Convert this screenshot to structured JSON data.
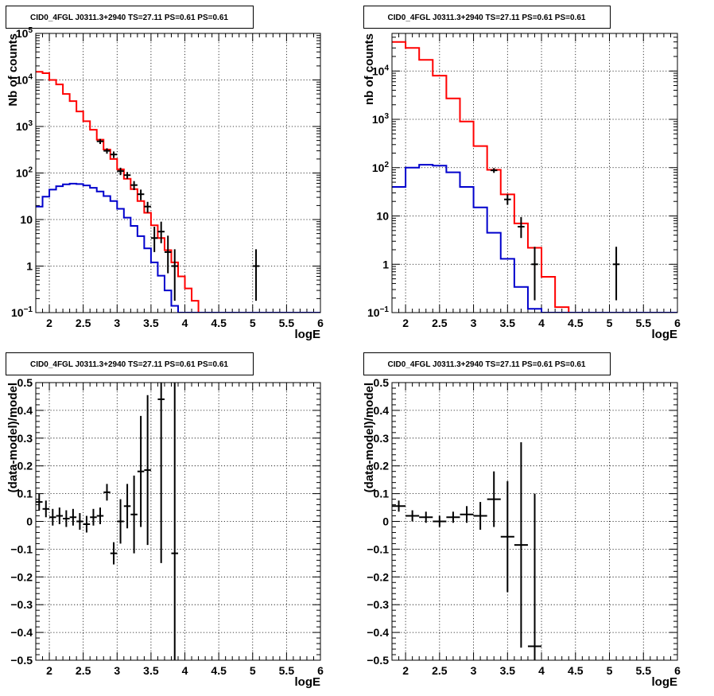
{
  "chart_data": [
    {
      "type": "line",
      "title": "CID0_4FGL J0311.3+2940 TS=27.11 PS=0.61 PS=0.61",
      "xlabel": "logE",
      "ylabel": "Nb of counts",
      "xlim": [
        1.8,
        6
      ],
      "ylim": [
        0.1,
        100000
      ],
      "yscale": "log",
      "grid": true,
      "x_ticks": [
        "2",
        "2.5",
        "3",
        "3.5",
        "4",
        "4.5",
        "5",
        "5.5",
        "6"
      ],
      "y_ticks": [
        "10⁻¹",
        "1",
        "10",
        "10²",
        "10³",
        "10⁴",
        "10⁵"
      ],
      "series": [
        {
          "color": "#ff0000",
          "style": "step",
          "bin_width": 0.1,
          "x": [
            1.8,
            1.9,
            2.0,
            2.1,
            2.2,
            2.3,
            2.4,
            2.5,
            2.6,
            2.7,
            2.8,
            2.9,
            3.0,
            3.1,
            3.2,
            3.3,
            3.4,
            3.5,
            3.6,
            3.7,
            3.8,
            3.9,
            4.0,
            4.1,
            4.2,
            4.3,
            4.4,
            4.5,
            4.6,
            4.7,
            4.8,
            4.9,
            5.0,
            5.1,
            5.2,
            5.3,
            5.4,
            5.5,
            5.6,
            5.7,
            5.8,
            5.9
          ],
          "values": [
            15000,
            14000,
            10000,
            8000,
            5000,
            3500,
            2100,
            1300,
            850,
            520,
            320,
            200,
            120,
            75,
            45,
            25,
            14,
            7.5,
            4,
            2.2,
            1.2,
            0.6,
            0.33,
            0.18,
            0.1,
            0.05,
            0.03,
            0.02,
            0.01,
            0.01,
            0.01,
            0.01,
            0.01,
            0.01,
            0.01,
            0.01,
            0.01,
            0.01,
            0.01,
            0.01,
            0.01,
            0.01
          ]
        },
        {
          "color": "#0000cc",
          "style": "step",
          "bin_width": 0.1,
          "x": [
            1.8,
            1.9,
            2.0,
            2.1,
            2.2,
            2.3,
            2.4,
            2.5,
            2.6,
            2.7,
            2.8,
            2.9,
            3.0,
            3.1,
            3.2,
            3.3,
            3.4,
            3.5,
            3.6,
            3.7,
            3.8,
            3.9,
            4.0,
            4.1,
            4.2,
            4.3,
            4.4,
            4.5,
            4.6,
            4.7,
            4.8,
            4.9,
            5.0,
            5.1,
            5.2,
            5.3,
            5.4,
            5.5,
            5.6,
            5.7,
            5.8,
            5.9
          ],
          "values": [
            19,
            31,
            44,
            52,
            57,
            59,
            58,
            54,
            48,
            40,
            32,
            25,
            17,
            11,
            7.3,
            4.4,
            2.4,
            1.2,
            0.62,
            0.3,
            0.14,
            0.1,
            0.1,
            0.1,
            0.1,
            0.1,
            0.1,
            0.1,
            0.1,
            0.1,
            0.1,
            0.1,
            0.1,
            0.1,
            0.1,
            0.1,
            0.1,
            0.1,
            0.1,
            0.1,
            0.1,
            0.1
          ]
        },
        {
          "color": "#000000",
          "style": "errorbars",
          "x": [
            2.75,
            2.85,
            2.95,
            3.05,
            3.15,
            3.25,
            3.35,
            3.45,
            3.55,
            3.65,
            3.75,
            3.85,
            5.05
          ],
          "values": [
            480,
            300,
            250,
            110,
            90,
            55,
            35,
            19,
            4,
            5.5,
            2,
            1,
            1
          ],
          "err_low": [
            60,
            40,
            40,
            20,
            15,
            12,
            9,
            5,
            2,
            2.4,
            1.3,
            0.82,
            0.82
          ],
          "err_high": [
            60,
            40,
            40,
            20,
            15,
            12,
            9,
            5,
            3,
            3.5,
            2.5,
            1.3,
            1.3
          ]
        }
      ]
    },
    {
      "type": "line",
      "title": "CID0_4FGL J0311.3+2940 TS=27.11 PS=0.61 PS=0.61",
      "xlabel": "logE",
      "ylabel": "nb of counts",
      "xlim": [
        1.8,
        6
      ],
      "ylim": [
        0.1,
        60000
      ],
      "yscale": "log",
      "grid": true,
      "x_ticks": [
        "2",
        "2.5",
        "3",
        "3.5",
        "4",
        "4.5",
        "5",
        "5.5",
        "6"
      ],
      "y_ticks": [
        "10⁻¹",
        "1",
        "10",
        "10²",
        "10³",
        "10⁴"
      ],
      "series": [
        {
          "color": "#ff0000",
          "style": "step",
          "bin_width": 0.2,
          "x": [
            1.8,
            2.0,
            2.2,
            2.4,
            2.6,
            2.8,
            3.0,
            3.2,
            3.4,
            3.6,
            3.8,
            4.0,
            4.2,
            4.4,
            4.6,
            4.8,
            5.0,
            5.2,
            5.4,
            5.6,
            5.8
          ],
          "values": [
            40000,
            30000,
            17000,
            8000,
            2700,
            900,
            280,
            90,
            28,
            7,
            2.2,
            0.55,
            0.13,
            0.05,
            0.05,
            0.05,
            0.05,
            0.05,
            0.05,
            0.05,
            0.05
          ]
        },
        {
          "color": "#0000cc",
          "style": "step",
          "bin_width": 0.2,
          "x": [
            1.8,
            2.0,
            2.2,
            2.4,
            2.6,
            2.8,
            3.0,
            3.2,
            3.4,
            3.6,
            3.8,
            4.0,
            4.2,
            4.4,
            4.6,
            4.8,
            5.0,
            5.2,
            5.4,
            5.6,
            5.8
          ],
          "values": [
            40,
            100,
            115,
            110,
            80,
            40,
            15,
            4.5,
            1.3,
            0.34,
            0.12,
            0.1,
            0.1,
            0.1,
            0.1,
            0.1,
            0.1,
            0.1,
            0.1,
            0.1,
            0.1
          ]
        },
        {
          "color": "#000000",
          "style": "errorbars",
          "x": [
            3.3,
            3.5,
            3.7,
            3.9,
            5.1
          ],
          "values": [
            88,
            22,
            6,
            1,
            1
          ],
          "err_low": [
            10,
            5,
            2.5,
            0.82,
            0.82
          ],
          "err_high": [
            10,
            6,
            3.5,
            1.3,
            1.3
          ]
        }
      ]
    },
    {
      "type": "scatter",
      "title": "CID0_4FGL J0311.3+2940 TS=27.11 PS=0.61 PS=0.61",
      "xlabel": "logE",
      "ylabel": "(data-model)/model",
      "xlim": [
        1.8,
        6
      ],
      "ylim": [
        -0.5,
        0.5
      ],
      "grid": true,
      "x_ticks": [
        "2",
        "2.5",
        "3",
        "3.5",
        "4",
        "4.5",
        "5",
        "5.5",
        "6"
      ],
      "y_ticks": [
        "−0.5",
        "−0.4",
        "−0.3",
        "−0.2",
        "−0.1",
        "0",
        "0.1",
        "0.2",
        "0.3",
        "0.4",
        "0.5"
      ],
      "series": [
        {
          "color": "#000000",
          "style": "errorbars",
          "x_half_width": 0.05,
          "x": [
            1.85,
            1.95,
            2.05,
            2.15,
            2.25,
            2.35,
            2.45,
            2.55,
            2.65,
            2.75,
            2.85,
            2.95,
            3.05,
            3.15,
            3.25,
            3.35,
            3.45,
            3.65,
            3.85
          ],
          "values": [
            0.07,
            0.045,
            0.015,
            0.02,
            0.01,
            0.015,
            0.0,
            -0.01,
            0.015,
            0.02,
            0.105,
            -0.115,
            0.0,
            0.055,
            0.025,
            0.18,
            0.185,
            0.44,
            -0.115
          ],
          "err": [
            0.03,
            0.03,
            0.03,
            0.03,
            0.03,
            0.03,
            0.03,
            0.03,
            0.03,
            0.03,
            0.03,
            0.04,
            0.08,
            0.08,
            0.14,
            0.2,
            0.27,
            0.59,
            0.62
          ]
        }
      ]
    },
    {
      "type": "scatter",
      "title": "CID0_4FGL J0311.3+2940 TS=27.11 PS=0.61 PS=0.61",
      "xlabel": "logE",
      "ylabel": "(data-model)/model",
      "xlim": [
        1.8,
        6
      ],
      "ylim": [
        -0.5,
        0.5
      ],
      "grid": true,
      "x_ticks": [
        "2",
        "2.5",
        "3",
        "3.5",
        "4",
        "4.5",
        "5",
        "5.5",
        "6"
      ],
      "y_ticks": [
        "−0.5",
        "−0.4",
        "−0.3",
        "−0.2",
        "−0.1",
        "0",
        "0.1",
        "0.2",
        "0.3",
        "0.4",
        "0.5"
      ],
      "series": [
        {
          "color": "#000000",
          "style": "errorbars",
          "x_half_width": 0.1,
          "x": [
            1.9,
            2.1,
            2.3,
            2.5,
            2.7,
            2.9,
            3.1,
            3.3,
            3.5,
            3.7,
            3.9
          ],
          "values": [
            0.055,
            0.02,
            0.015,
            0.0,
            0.015,
            0.025,
            0.02,
            0.08,
            -0.055,
            -0.085,
            -0.45
          ],
          "err": [
            0.02,
            0.02,
            0.02,
            0.02,
            0.02,
            0.03,
            0.05,
            0.1,
            0.2,
            0.37,
            0.55
          ]
        }
      ]
    }
  ]
}
